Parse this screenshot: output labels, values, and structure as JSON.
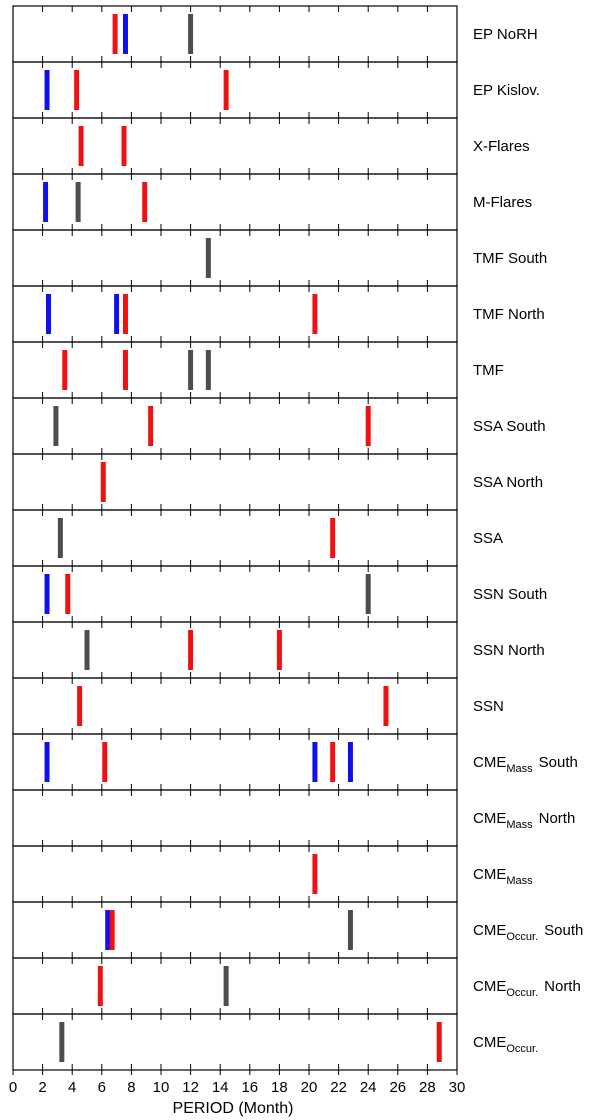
{
  "chart_data": {
    "type": "bar",
    "xlabel": "PERIOD (Month)",
    "xlim": [
      0,
      30
    ],
    "xticks": [
      0,
      2,
      4,
      6,
      8,
      10,
      12,
      14,
      16,
      18,
      20,
      22,
      24,
      26,
      28,
      30
    ],
    "grid": false,
    "colors": {
      "red": "#ee1111",
      "blue": "#1111ee",
      "gray": "#4d4d4d"
    },
    "rows": [
      {
        "label": "EP NoRH",
        "base": "EP NoRH",
        "sub": "",
        "suffix": "",
        "marks": [
          {
            "x": 6.9,
            "color": "red"
          },
          {
            "x": 7.6,
            "color": "blue"
          },
          {
            "x": 12.0,
            "color": "gray"
          }
        ]
      },
      {
        "label": "EP Kislov.",
        "base": "EP Kislov.",
        "sub": "",
        "suffix": "",
        "marks": [
          {
            "x": 2.3,
            "color": "blue"
          },
          {
            "x": 4.3,
            "color": "red"
          },
          {
            "x": 14.4,
            "color": "red"
          }
        ]
      },
      {
        "label": "X-Flares",
        "base": "X-Flares",
        "sub": "",
        "suffix": "",
        "marks": [
          {
            "x": 4.6,
            "color": "red"
          },
          {
            "x": 7.5,
            "color": "red"
          }
        ]
      },
      {
        "label": "M-Flares",
        "base": "M-Flares",
        "sub": "",
        "suffix": "",
        "marks": [
          {
            "x": 2.2,
            "color": "blue"
          },
          {
            "x": 4.4,
            "color": "gray"
          },
          {
            "x": 8.9,
            "color": "red"
          }
        ]
      },
      {
        "label": "TMF South",
        "base": "TMF South",
        "sub": "",
        "suffix": "",
        "marks": [
          {
            "x": 13.2,
            "color": "gray"
          }
        ]
      },
      {
        "label": "TMF North",
        "base": "TMF North",
        "sub": "",
        "suffix": "",
        "marks": [
          {
            "x": 2.4,
            "color": "blue"
          },
          {
            "x": 7.0,
            "color": "blue"
          },
          {
            "x": 7.6,
            "color": "red"
          },
          {
            "x": 20.4,
            "color": "red"
          }
        ]
      },
      {
        "label": "TMF",
        "base": "TMF",
        "sub": "",
        "suffix": "",
        "marks": [
          {
            "x": 3.5,
            "color": "red"
          },
          {
            "x": 7.6,
            "color": "red"
          },
          {
            "x": 12.0,
            "color": "gray"
          },
          {
            "x": 13.2,
            "color": "gray"
          }
        ]
      },
      {
        "label": "SSA South",
        "base": "SSA South",
        "sub": "",
        "suffix": "",
        "marks": [
          {
            "x": 2.9,
            "color": "gray"
          },
          {
            "x": 9.3,
            "color": "red"
          },
          {
            "x": 24.0,
            "color": "red"
          }
        ]
      },
      {
        "label": "SSA North",
        "base": "SSA North",
        "sub": "",
        "suffix": "",
        "marks": [
          {
            "x": 6.1,
            "color": "red"
          }
        ]
      },
      {
        "label": "SSA",
        "base": "SSA",
        "sub": "",
        "suffix": "",
        "marks": [
          {
            "x": 3.2,
            "color": "gray"
          },
          {
            "x": 21.6,
            "color": "red"
          }
        ]
      },
      {
        "label": "SSN South",
        "base": "SSN South",
        "sub": "",
        "suffix": "",
        "marks": [
          {
            "x": 2.3,
            "color": "blue"
          },
          {
            "x": 3.7,
            "color": "red"
          },
          {
            "x": 24.0,
            "color": "gray"
          }
        ]
      },
      {
        "label": "SSN North",
        "base": "SSN North",
        "sub": "",
        "suffix": "",
        "marks": [
          {
            "x": 5.0,
            "color": "gray"
          },
          {
            "x": 12.0,
            "color": "red"
          },
          {
            "x": 18.0,
            "color": "red"
          }
        ]
      },
      {
        "label": "SSN",
        "base": "SSN",
        "sub": "",
        "suffix": "",
        "marks": [
          {
            "x": 4.5,
            "color": "red"
          },
          {
            "x": 25.2,
            "color": "red"
          }
        ]
      },
      {
        "label": "CME Mass South",
        "base": "CME",
        "sub": "Mass",
        "suffix": "South",
        "marks": [
          {
            "x": 2.3,
            "color": "blue"
          },
          {
            "x": 6.2,
            "color": "red"
          },
          {
            "x": 20.4,
            "color": "blue"
          },
          {
            "x": 21.6,
            "color": "red"
          },
          {
            "x": 22.8,
            "color": "blue"
          }
        ]
      },
      {
        "label": "CME Mass North",
        "base": "CME",
        "sub": "Mass",
        "suffix": "North",
        "marks": []
      },
      {
        "label": "CME Mass",
        "base": "CME",
        "sub": "Mass",
        "suffix": "",
        "marks": [
          {
            "x": 20.4,
            "color": "red"
          }
        ]
      },
      {
        "label": "CME Occur. South",
        "base": "CME",
        "sub": "Occur.",
        "suffix": "South",
        "marks": [
          {
            "x": 6.4,
            "color": "blue"
          },
          {
            "x": 6.7,
            "color": "red"
          },
          {
            "x": 22.8,
            "color": "gray"
          }
        ]
      },
      {
        "label": "CME Occur. North",
        "base": "CME",
        "sub": "Occur.",
        "suffix": "North",
        "marks": [
          {
            "x": 5.9,
            "color": "red"
          },
          {
            "x": 14.4,
            "color": "gray"
          }
        ]
      },
      {
        "label": "CME Occur.",
        "base": "CME",
        "sub": "Occur.",
        "suffix": "",
        "marks": [
          {
            "x": 3.3,
            "color": "gray"
          },
          {
            "x": 28.8,
            "color": "red"
          }
        ]
      }
    ]
  }
}
